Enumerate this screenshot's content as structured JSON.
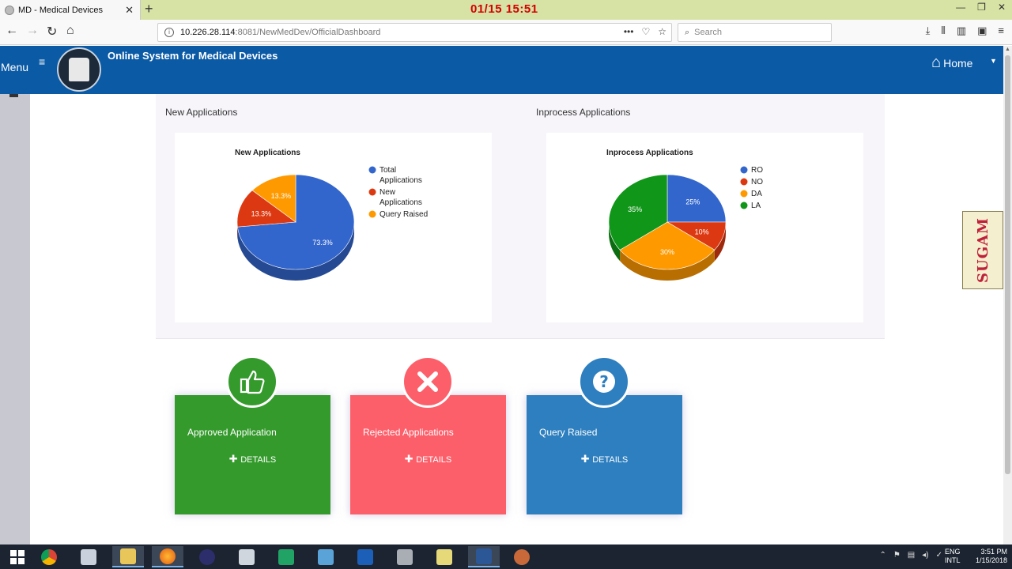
{
  "browser": {
    "tab_title": "MD - Medical Devices",
    "tab_close": "✕",
    "new_tab": "+",
    "url_host": "10.226.28.114",
    "url_rest": ":8081/NewMedDev/OfficialDashboard",
    "search_placeholder": "Search",
    "overlay_clock": "01/15  15:51"
  },
  "header": {
    "menu_label": "Menu",
    "app_title": "Online System for Medical Devices",
    "home_label": "Home"
  },
  "panels": {
    "left_title": "New Applications",
    "right_title": "Inprocess Applications"
  },
  "chart_data": [
    {
      "type": "pie",
      "title": "New Applications",
      "legend_position": "right",
      "categories": [
        "Total Applications",
        "New Applications",
        "Query Raised"
      ],
      "values": [
        73.3,
        13.3,
        13.3
      ],
      "labels": [
        "73.3%",
        "13.3%",
        "13.3%"
      ],
      "colors": [
        "#3366cc",
        "#dc3912",
        "#ff9900"
      ]
    },
    {
      "type": "pie",
      "title": "Inprocess Applications",
      "legend_position": "right",
      "categories": [
        "RO",
        "NO",
        "DA",
        "LA"
      ],
      "values": [
        25,
        10,
        30,
        35
      ],
      "labels": [
        "25%",
        "10%",
        "30%",
        "35%"
      ],
      "colors": [
        "#3366cc",
        "#dc3912",
        "#ff9900",
        "#109618"
      ]
    }
  ],
  "tiles": [
    {
      "label": "Approved Application",
      "details": "DETAILS",
      "color": "#349a2c",
      "icon": "thumbs-up-icon"
    },
    {
      "label": "Rejected Applications",
      "details": "DETAILS",
      "color": "#fd5f6a",
      "icon": "x-mark-icon"
    },
    {
      "label": "Query Raised",
      "details": "DETAILS",
      "color": "#2e7fbf",
      "icon": "question-icon"
    }
  ],
  "sugam_badge": "SUGAM",
  "taskbar": {
    "lang_top": "ENG",
    "lang_bottom": "INTL",
    "time": "3:51 PM",
    "date": "1/15/2018"
  }
}
